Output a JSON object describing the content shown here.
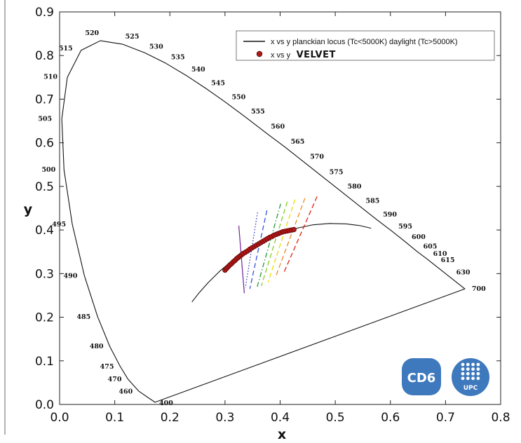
{
  "chart_data": {
    "type": "scatter",
    "title": "",
    "xlabel": "x",
    "ylabel": "y",
    "xlim": [
      0,
      0.8
    ],
    "ylim": [
      0,
      0.9
    ],
    "x_ticks": [
      "0.0",
      "0.1",
      "0.2",
      "0.3",
      "0.4",
      "0.5",
      "0.6",
      "0.7",
      "0.8"
    ],
    "y_ticks": [
      "0.0",
      "0.1",
      "0.2",
      "0.3",
      "0.4",
      "0.5",
      "0.6",
      "0.7",
      "0.8",
      "0.9"
    ],
    "grid": false,
    "legend_position": "top-right",
    "legend": {
      "line_label": "x vs y planckian locus (Tc<5000K) daylight (Tc>5000K)",
      "scatter_label_prefix": "x vs y",
      "scatter_label_brand": "VELVET"
    },
    "spectral_locus": [
      {
        "nm": "400",
        "x": 0.173,
        "y": 0.005
      },
      {
        "nm": "460",
        "x": 0.144,
        "y": 0.03
      },
      {
        "nm": "470",
        "x": 0.124,
        "y": 0.058
      },
      {
        "nm": "475",
        "x": 0.11,
        "y": 0.087
      },
      {
        "nm": "480",
        "x": 0.091,
        "y": 0.133
      },
      {
        "nm": "485",
        "x": 0.069,
        "y": 0.201
      },
      {
        "nm": "490",
        "x": 0.045,
        "y": 0.295
      },
      {
        "nm": "495",
        "x": 0.023,
        "y": 0.413
      },
      {
        "nm": "500",
        "x": 0.008,
        "y": 0.538
      },
      {
        "nm": "505",
        "x": 0.004,
        "y": 0.655
      },
      {
        "nm": "510",
        "x": 0.014,
        "y": 0.75
      },
      {
        "nm": "515",
        "x": 0.039,
        "y": 0.812
      },
      {
        "nm": "520",
        "x": 0.074,
        "y": 0.834
      },
      {
        "nm": "525",
        "x": 0.114,
        "y": 0.826
      },
      {
        "nm": "530",
        "x": 0.155,
        "y": 0.806
      },
      {
        "nm": "535",
        "x": 0.193,
        "y": 0.782
      },
      {
        "nm": "540",
        "x": 0.23,
        "y": 0.754
      },
      {
        "nm": "545",
        "x": 0.266,
        "y": 0.724
      },
      {
        "nm": "550",
        "x": 0.302,
        "y": 0.692
      },
      {
        "nm": "555",
        "x": 0.337,
        "y": 0.659
      },
      {
        "nm": "560",
        "x": 0.373,
        "y": 0.624
      },
      {
        "nm": "565",
        "x": 0.409,
        "y": 0.59
      },
      {
        "nm": "570",
        "x": 0.444,
        "y": 0.555
      },
      {
        "nm": "575",
        "x": 0.479,
        "y": 0.52
      },
      {
        "nm": "580",
        "x": 0.512,
        "y": 0.487
      },
      {
        "nm": "585",
        "x": 0.545,
        "y": 0.454
      },
      {
        "nm": "590",
        "x": 0.575,
        "y": 0.424
      },
      {
        "nm": "595",
        "x": 0.603,
        "y": 0.397
      },
      {
        "nm": "600",
        "x": 0.627,
        "y": 0.373
      },
      {
        "nm": "605",
        "x": 0.648,
        "y": 0.351
      },
      {
        "nm": "610",
        "x": 0.666,
        "y": 0.334
      },
      {
        "nm": "615",
        "x": 0.68,
        "y": 0.32
      },
      {
        "nm": "630",
        "x": 0.708,
        "y": 0.292
      },
      {
        "nm": "700",
        "x": 0.735,
        "y": 0.265
      }
    ],
    "planckian_locus": [
      {
        "x": 0.24,
        "y": 0.235
      },
      {
        "x": 0.253,
        "y": 0.256
      },
      {
        "x": 0.27,
        "y": 0.28
      },
      {
        "x": 0.29,
        "y": 0.305
      },
      {
        "x": 0.313,
        "y": 0.33
      },
      {
        "x": 0.34,
        "y": 0.354
      },
      {
        "x": 0.37,
        "y": 0.375
      },
      {
        "x": 0.4,
        "y": 0.392
      },
      {
        "x": 0.43,
        "y": 0.404
      },
      {
        "x": 0.46,
        "y": 0.412
      },
      {
        "x": 0.49,
        "y": 0.415
      },
      {
        "x": 0.52,
        "y": 0.414
      },
      {
        "x": 0.545,
        "y": 0.41
      },
      {
        "x": 0.565,
        "y": 0.404
      }
    ],
    "iso_cct_lines": [
      {
        "color": "#7b2fa0",
        "style": "solid",
        "x1": 0.325,
        "y1": 0.41,
        "x2": 0.335,
        "y2": 0.255
      },
      {
        "color": "#3333cc",
        "style": "dotted",
        "x1": 0.359,
        "y1": 0.44,
        "x2": 0.337,
        "y2": 0.268
      },
      {
        "color": "#3355dd",
        "style": "dashed",
        "x1": 0.376,
        "y1": 0.445,
        "x2": 0.345,
        "y2": 0.265
      },
      {
        "color": "#2a9a3a",
        "style": "dashdot",
        "x1": 0.401,
        "y1": 0.46,
        "x2": 0.358,
        "y2": 0.268
      },
      {
        "color": "#88cc22",
        "style": "dashed",
        "x1": 0.413,
        "y1": 0.465,
        "x2": 0.366,
        "y2": 0.272
      },
      {
        "color": "#eedd00",
        "style": "dashed",
        "x1": 0.427,
        "y1": 0.47,
        "x2": 0.378,
        "y2": 0.28
      },
      {
        "color": "#ee8a22",
        "style": "dashed",
        "x1": 0.445,
        "y1": 0.473,
        "x2": 0.391,
        "y2": 0.29
      },
      {
        "color": "#dd2211",
        "style": "dashed",
        "x1": 0.467,
        "y1": 0.477,
        "x2": 0.406,
        "y2": 0.3
      }
    ],
    "velvet_points": [
      {
        "x": 0.3,
        "y": 0.308
      },
      {
        "x": 0.303,
        "y": 0.312
      },
      {
        "x": 0.306,
        "y": 0.316
      },
      {
        "x": 0.309,
        "y": 0.32
      },
      {
        "x": 0.312,
        "y": 0.323
      },
      {
        "x": 0.315,
        "y": 0.327
      },
      {
        "x": 0.318,
        "y": 0.33
      },
      {
        "x": 0.321,
        "y": 0.334
      },
      {
        "x": 0.324,
        "y": 0.337
      },
      {
        "x": 0.327,
        "y": 0.34
      },
      {
        "x": 0.33,
        "y": 0.343
      },
      {
        "x": 0.333,
        "y": 0.346
      },
      {
        "x": 0.337,
        "y": 0.349
      },
      {
        "x": 0.341,
        "y": 0.352
      },
      {
        "x": 0.345,
        "y": 0.356
      },
      {
        "x": 0.349,
        "y": 0.359
      },
      {
        "x": 0.353,
        "y": 0.362
      },
      {
        "x": 0.357,
        "y": 0.365
      },
      {
        "x": 0.361,
        "y": 0.368
      },
      {
        "x": 0.365,
        "y": 0.371
      },
      {
        "x": 0.369,
        "y": 0.374
      },
      {
        "x": 0.373,
        "y": 0.377
      },
      {
        "x": 0.377,
        "y": 0.38
      },
      {
        "x": 0.381,
        "y": 0.383
      },
      {
        "x": 0.385,
        "y": 0.385
      },
      {
        "x": 0.389,
        "y": 0.388
      },
      {
        "x": 0.393,
        "y": 0.39
      },
      {
        "x": 0.397,
        "y": 0.392
      },
      {
        "x": 0.401,
        "y": 0.394
      },
      {
        "x": 0.405,
        "y": 0.396
      },
      {
        "x": 0.409,
        "y": 0.397
      },
      {
        "x": 0.413,
        "y": 0.398
      },
      {
        "x": 0.417,
        "y": 0.399
      },
      {
        "x": 0.421,
        "y": 0.4
      },
      {
        "x": 0.425,
        "y": 0.401
      }
    ]
  },
  "logos": {
    "cd6": "CD6",
    "upc": "UPC"
  },
  "colors": {
    "velvet_point": "#b01818",
    "velvet_edge": "#5a0808",
    "logo_blue": "#3e78bd",
    "locus": "#111111"
  }
}
